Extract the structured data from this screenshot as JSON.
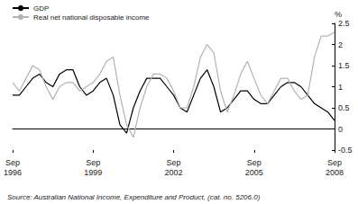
{
  "chart_data": {
    "type": "line",
    "y_label": "%",
    "source": "Source: Australian National Income, Expenditure and Product, (cat. no. 5206.0)",
    "categories": [
      "Sep 1996",
      null,
      null,
      null,
      null,
      null,
      null,
      null,
      null,
      null,
      null,
      null,
      "Sep 1999",
      null,
      null,
      null,
      null,
      null,
      null,
      null,
      null,
      null,
      null,
      null,
      "Sep 2002",
      null,
      null,
      null,
      null,
      null,
      null,
      null,
      null,
      null,
      null,
      null,
      "Sep 2005",
      null,
      null,
      null,
      null,
      null,
      null,
      null,
      null,
      null,
      null,
      null,
      "Sep 2008"
    ],
    "series": [
      {
        "name": "GDP",
        "color": "#000000",
        "values": [
          0.8,
          0.8,
          1.0,
          1.2,
          1.3,
          1.1,
          1.0,
          1.3,
          1.4,
          1.4,
          1.0,
          0.8,
          0.9,
          1.1,
          1.2,
          0.8,
          0.1,
          -0.1,
          0.5,
          0.9,
          1.2,
          1.2,
          1.2,
          1.0,
          0.8,
          0.5,
          0.4,
          0.8,
          1.2,
          1.4,
          1.0,
          0.4,
          0.5,
          0.7,
          0.9,
          0.9,
          0.7,
          0.6,
          0.6,
          0.8,
          1.0,
          1.1,
          1.1,
          1.0,
          0.8,
          0.6,
          0.5,
          0.4,
          0.2
        ]
      },
      {
        "name": "Real net national disposable income",
        "color": "#b3b3b3",
        "values": [
          1.1,
          0.9,
          1.2,
          1.5,
          1.4,
          1.0,
          0.7,
          1.0,
          1.1,
          1.1,
          0.9,
          1.0,
          1.1,
          1.3,
          1.6,
          1.7,
          0.8,
          0.1,
          -0.2,
          0.5,
          1.0,
          1.3,
          1.3,
          1.2,
          0.9,
          0.5,
          0.5,
          1.0,
          1.7,
          2.0,
          1.8,
          0.9,
          0.4,
          0.8,
          1.3,
          1.6,
          1.2,
          0.8,
          0.6,
          0.9,
          1.2,
          1.2,
          0.9,
          0.7,
          0.8,
          1.7,
          2.2,
          2.2,
          2.3
        ]
      }
    ],
    "ylim": [
      -0.5,
      2.5
    ],
    "yticks": [
      -0.5,
      0,
      0.5,
      1,
      1.5,
      2,
      2.5
    ],
    "grid": false,
    "legend": "top-left"
  }
}
